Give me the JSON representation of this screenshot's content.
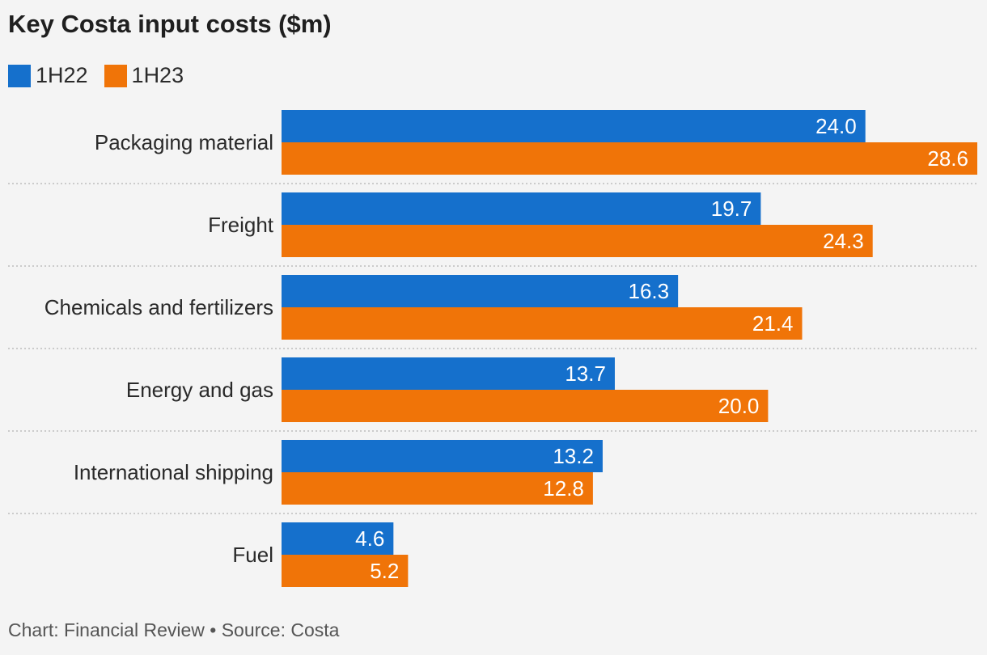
{
  "title": "Key Costa input costs ($m)",
  "legend": [
    {
      "label": "1H22",
      "color": "#1570cc"
    },
    {
      "label": "1H23",
      "color": "#f07408"
    }
  ],
  "footer": "Chart: Financial Review • Source: Costa",
  "chart_data": {
    "type": "bar",
    "orientation": "horizontal",
    "title": "Key Costa input costs ($m)",
    "categories": [
      "Packaging material",
      "Freight",
      "Chemicals and fertilizers",
      "Energy and gas",
      "International shipping",
      "Fuel"
    ],
    "series": [
      {
        "name": "1H22",
        "color": "#1570cc",
        "values": [
          24.0,
          19.7,
          16.3,
          13.7,
          13.2,
          4.6
        ],
        "labels": [
          "24.0",
          "19.7",
          "16.3",
          "13.7",
          "13.2",
          "4.6"
        ]
      },
      {
        "name": "1H23",
        "color": "#f07408",
        "values": [
          28.6,
          24.3,
          21.4,
          20.0,
          12.8,
          5.2
        ],
        "labels": [
          "28.6",
          "24.3",
          "21.4",
          "20.0",
          "12.8",
          "5.2"
        ]
      }
    ],
    "xlim": [
      0,
      28.6
    ],
    "data_labels": "inside-end",
    "grid": false,
    "legend_position": "top-left"
  }
}
